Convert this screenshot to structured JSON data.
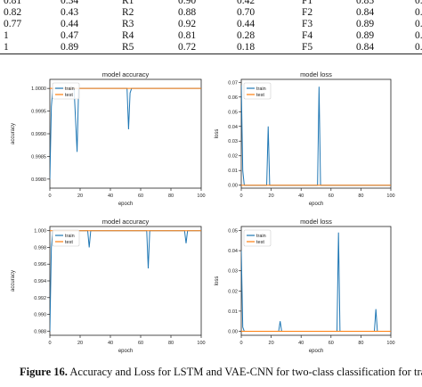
{
  "table": {
    "rows": [
      [
        "0.81",
        "0.34",
        "R1",
        "0.90",
        "0.42",
        "F1",
        "0.85",
        "0."
      ],
      [
        "0.82",
        "0.43",
        "R2",
        "0.88",
        "0.70",
        "F2",
        "0.84",
        "0."
      ],
      [
        "0.77",
        "0.44",
        "R3",
        "0.92",
        "0.44",
        "F3",
        "0.89",
        "0."
      ],
      [
        "1",
        "0.47",
        "R4",
        "0.81",
        "0.28",
        "F4",
        "0.89",
        "0."
      ],
      [
        "1",
        "0.89",
        "R5",
        "0.72",
        "0.18",
        "F5",
        "0.84",
        "0."
      ]
    ]
  },
  "caption": {
    "label": "Figure 16.",
    "text": " Accuracy and Loss for LSTM and VAE-CNN for two-class classification for traini"
  },
  "chart_data": [
    {
      "type": "line",
      "title": "model accuracy",
      "xlabel": "epoch",
      "ylabel": "accuracy",
      "xlim": [
        0,
        100
      ],
      "ylim": [
        0.9978,
        1.0002
      ],
      "xticks": [
        "0",
        "20",
        "40",
        "60",
        "80",
        "100"
      ],
      "yticks": [
        "0.9980",
        "0.9985",
        "0.9990",
        "0.9995",
        "1.0000"
      ],
      "yticks_values": [
        0.998,
        0.9985,
        0.999,
        0.9995,
        1.0
      ],
      "legend": "top-left",
      "series": [
        {
          "name": "train",
          "color": "#1f77b4",
          "x": [
            0,
            1,
            2,
            16,
            17,
            18,
            19,
            51,
            52,
            53,
            54,
            100
          ],
          "y": [
            0.998,
            0.9996,
            1.0,
            1.0,
            0.9993,
            0.9986,
            1.0,
            1.0,
            0.9991,
            0.9999,
            1.0,
            1.0
          ]
        },
        {
          "name": "test",
          "color": "#ff7f0e",
          "x": [
            0,
            100
          ],
          "y": [
            1.0,
            1.0
          ]
        }
      ]
    },
    {
      "type": "line",
      "title": "model loss",
      "xlabel": "epoch",
      "ylabel": "loss",
      "xlim": [
        0,
        100
      ],
      "ylim": [
        -0.002,
        0.072
      ],
      "xticks": [
        "0",
        "20",
        "40",
        "60",
        "80",
        "100"
      ],
      "yticks": [
        "0.00",
        "0.01",
        "0.02",
        "0.03",
        "0.04",
        "0.05",
        "0.06",
        "0.07"
      ],
      "yticks_values": [
        0,
        0.01,
        0.02,
        0.03,
        0.04,
        0.05,
        0.06,
        0.07
      ],
      "legend": "top-left",
      "series": [
        {
          "name": "train",
          "color": "#1f77b4",
          "x": [
            0,
            1,
            2,
            17,
            18,
            19,
            51,
            52,
            53,
            100
          ],
          "y": [
            0.068,
            0.01,
            0.0,
            0.0,
            0.04,
            0.0,
            0.0,
            0.067,
            0.0,
            0.0
          ]
        },
        {
          "name": "test",
          "color": "#ff7f0e",
          "x": [
            0,
            100
          ],
          "y": [
            0.0,
            0.0
          ]
        }
      ]
    },
    {
      "type": "line",
      "title": "model accuracy",
      "xlabel": "epoch",
      "ylabel": "accuracy",
      "xlim": [
        0,
        100
      ],
      "ylim": [
        0.9875,
        1.0005
      ],
      "xticks": [
        "0",
        "20",
        "40",
        "60",
        "80",
        "100"
      ],
      "yticks": [
        "0.988",
        "0.990",
        "0.992",
        "0.994",
        "0.996",
        "0.998",
        "1.000"
      ],
      "yticks_values": [
        0.988,
        0.99,
        0.992,
        0.994,
        0.996,
        0.998,
        1.0
      ],
      "legend": "top-left",
      "series": [
        {
          "name": "train",
          "color": "#1f77b4",
          "x": [
            0,
            1,
            2,
            25,
            26,
            27,
            64,
            65,
            66,
            89,
            90,
            91,
            100
          ],
          "y": [
            0.988,
            0.998,
            1.0,
            1.0,
            0.998,
            1.0,
            1.0,
            0.9955,
            1.0,
            1.0,
            0.9985,
            1.0,
            1.0
          ]
        },
        {
          "name": "test",
          "color": "#ff7f0e",
          "x": [
            0,
            100
          ],
          "y": [
            1.0,
            1.0
          ]
        }
      ]
    },
    {
      "type": "line",
      "title": "model loss",
      "xlabel": "epoch",
      "ylabel": "loss",
      "xlim": [
        0,
        100
      ],
      "ylim": [
        -0.002,
        0.052
      ],
      "xticks": [
        "0",
        "20",
        "40",
        "60",
        "80",
        "100"
      ],
      "yticks": [
        "0.00",
        "0.01",
        "0.02",
        "0.03",
        "0.04",
        "0.05"
      ],
      "yticks_values": [
        0,
        0.01,
        0.02,
        0.03,
        0.04,
        0.05
      ],
      "legend": "top-left",
      "series": [
        {
          "name": "train",
          "color": "#1f77b4",
          "x": [
            0,
            1,
            2,
            25,
            26,
            27,
            64,
            65,
            66,
            89,
            90,
            91,
            100
          ],
          "y": [
            0.04,
            0.002,
            0.0,
            0.0,
            0.005,
            0.0,
            0.0,
            0.049,
            0.0,
            0.0,
            0.011,
            0.0,
            0.0
          ]
        },
        {
          "name": "test",
          "color": "#ff7f0e",
          "x": [
            0,
            100
          ],
          "y": [
            0.0,
            0.0
          ]
        }
      ]
    }
  ]
}
